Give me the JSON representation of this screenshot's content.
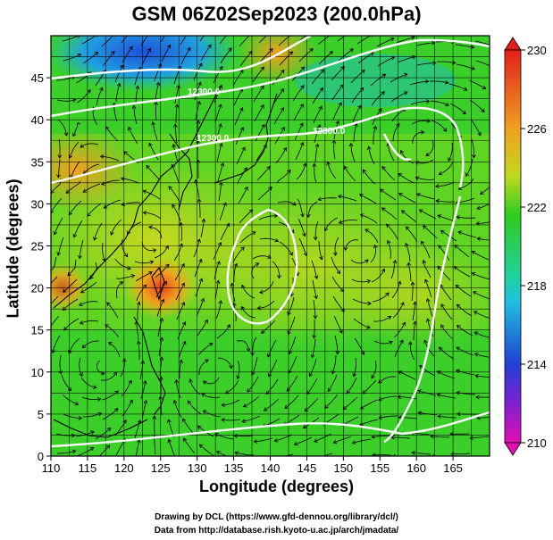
{
  "title": "GSM 06Z02Sep2023 (200.0hPa)",
  "axes": {
    "xlabel": "Longitude (degrees)",
    "ylabel": "Latitude  (degrees)",
    "x_ticks": [
      "110",
      "115",
      "120",
      "125",
      "130",
      "135",
      "140",
      "145",
      "150",
      "155",
      "160",
      "165"
    ],
    "y_ticks": [
      "0",
      "5",
      "10",
      "15",
      "20",
      "25",
      "30",
      "35",
      "40",
      "45"
    ]
  },
  "colorbar": {
    "ticks": [
      "230",
      "226",
      "222",
      "218",
      "214",
      "210"
    ],
    "colors": [
      "#e0201c",
      "#f0a020",
      "#30cc20",
      "#20c0e0",
      "#2040d0",
      "#d010c0"
    ]
  },
  "contour_labels": [
    "12300.0",
    "12300.0",
    "12300.0"
  ],
  "credits": {
    "line1": "Drawing by DCL (https://www.gfd-dennou.org/library/dcl/)",
    "line2": "Data from http://database.rish.kyoto-u.ac.jp/arch/jmadata/"
  },
  "map_extent": {
    "lon": [
      110,
      170
    ],
    "lat": [
      0,
      50
    ]
  }
}
